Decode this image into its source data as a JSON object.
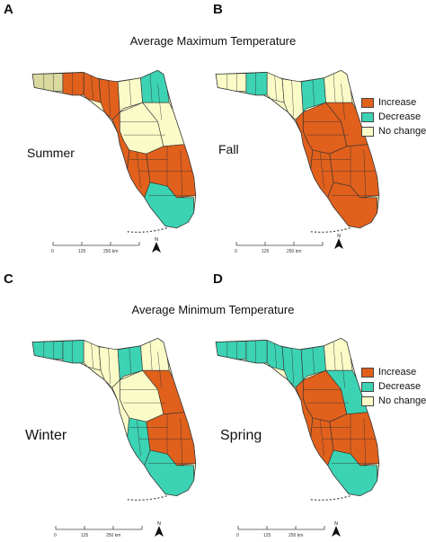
{
  "headings": {
    "top": "Average Maximum Temperature",
    "bottom": "Average Minimum Temperature"
  },
  "panels": [
    {
      "letter": "A",
      "season": "Summer",
      "fills": {
        "panhandle": "#d9d9a0",
        "west_a": "#e0601c",
        "west_b": "#e0601c",
        "bigbend": "#e0601c",
        "north_a": "#fbfbc8",
        "north_b": "#3bd3b3",
        "east_coast": "#fbfbc8",
        "central": "#fbfbc8",
        "gulf_central": "#e0601c",
        "sw": "#e0601c",
        "se": "#e0601c",
        "south_c": "#3bd3b3"
      }
    },
    {
      "letter": "B",
      "season": "Fall",
      "fills": {
        "panhandle": "#fbfbc8",
        "west_a": "#3bd3b3",
        "west_b": "#fbfbc8",
        "bigbend": "#fbfbc8",
        "north_a": "#3bd3b3",
        "north_b": "#fbfbc8",
        "east_coast": "#e0601c",
        "central": "#e0601c",
        "gulf_central": "#e0601c",
        "sw": "#e0601c",
        "se": "#e0601c",
        "south_c": "#e0601c"
      }
    },
    {
      "letter": "C",
      "season": "Winter",
      "fills": {
        "panhandle": "#3bd3b3",
        "west_a": "#3bd3b3",
        "west_b": "#fbfbc8",
        "bigbend": "#fbfbc8",
        "north_a": "#3bd3b3",
        "north_b": "#fbfbc8",
        "east_coast": "#e0601c",
        "central": "#fbfbc8",
        "gulf_central": "#fbfbc8",
        "sw": "#3bd3b3",
        "se": "#e0601c",
        "south_c": "#3bd3b3"
      }
    },
    {
      "letter": "D",
      "season": "Spring",
      "fills": {
        "panhandle": "#3bd3b3",
        "west_a": "#3bd3b3",
        "west_b": "#3bd3b3",
        "bigbend": "#3bd3b3",
        "north_a": "#3bd3b3",
        "north_b": "#fbfbc8",
        "east_coast": "#3bd3b3",
        "central": "#e0601c",
        "gulf_central": "#e0601c",
        "sw": "#e0601c",
        "se": "#e0601c",
        "south_c": "#3bd3b3"
      }
    }
  ],
  "legend": [
    {
      "label": "Increase",
      "color": "#e0601c"
    },
    {
      "label": "Decrease",
      "color": "#3bd3b3"
    },
    {
      "label": "No change",
      "color": "#fbfbc8"
    }
  ],
  "scale": {
    "t0": "0",
    "t1": "125",
    "t2": "250 km"
  },
  "north_label": "N",
  "colors": {
    "outline": "#333333",
    "no_change": "#fbfbc8",
    "increase": "#e0601c",
    "decrease": "#3bd3b3"
  }
}
